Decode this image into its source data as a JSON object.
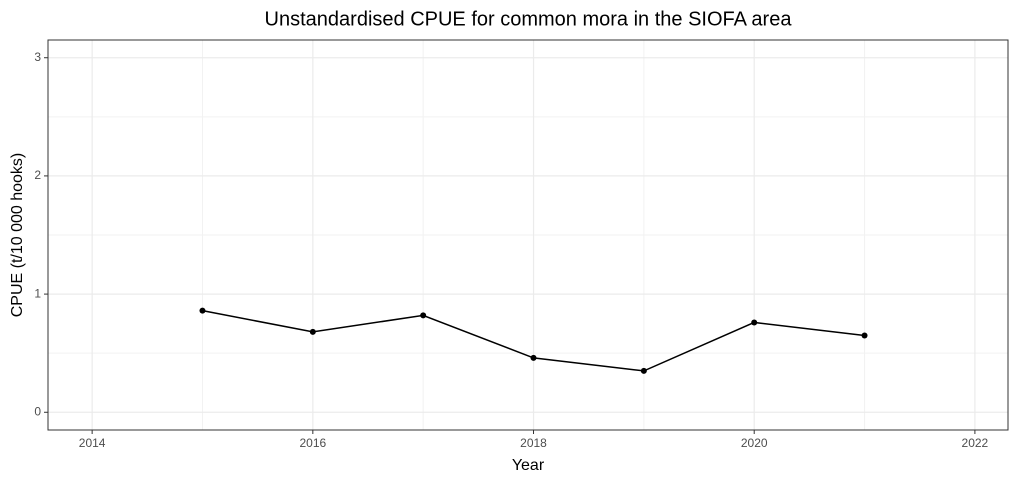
{
  "chart_data": {
    "type": "line",
    "title": "Unstandardised CPUE for common mora in the SIOFA area",
    "x_label": "Year",
    "y_label": "CPUE (t/10 000 hooks)",
    "x": [
      2015,
      2016,
      2017,
      2018,
      2019,
      2020,
      2021
    ],
    "series": [
      {
        "name": "CPUE",
        "color": "#000000",
        "values": [
          0.86,
          0.68,
          0.82,
          0.46,
          0.35,
          0.76,
          0.65
        ]
      }
    ],
    "xlim": [
      2013.6,
      2022.3
    ],
    "xticks": [
      2014,
      2016,
      2018,
      2020,
      2022
    ],
    "ylim": [
      -0.15,
      3.15
    ],
    "yticks": [
      0,
      1,
      2,
      3
    ],
    "grid": true
  }
}
